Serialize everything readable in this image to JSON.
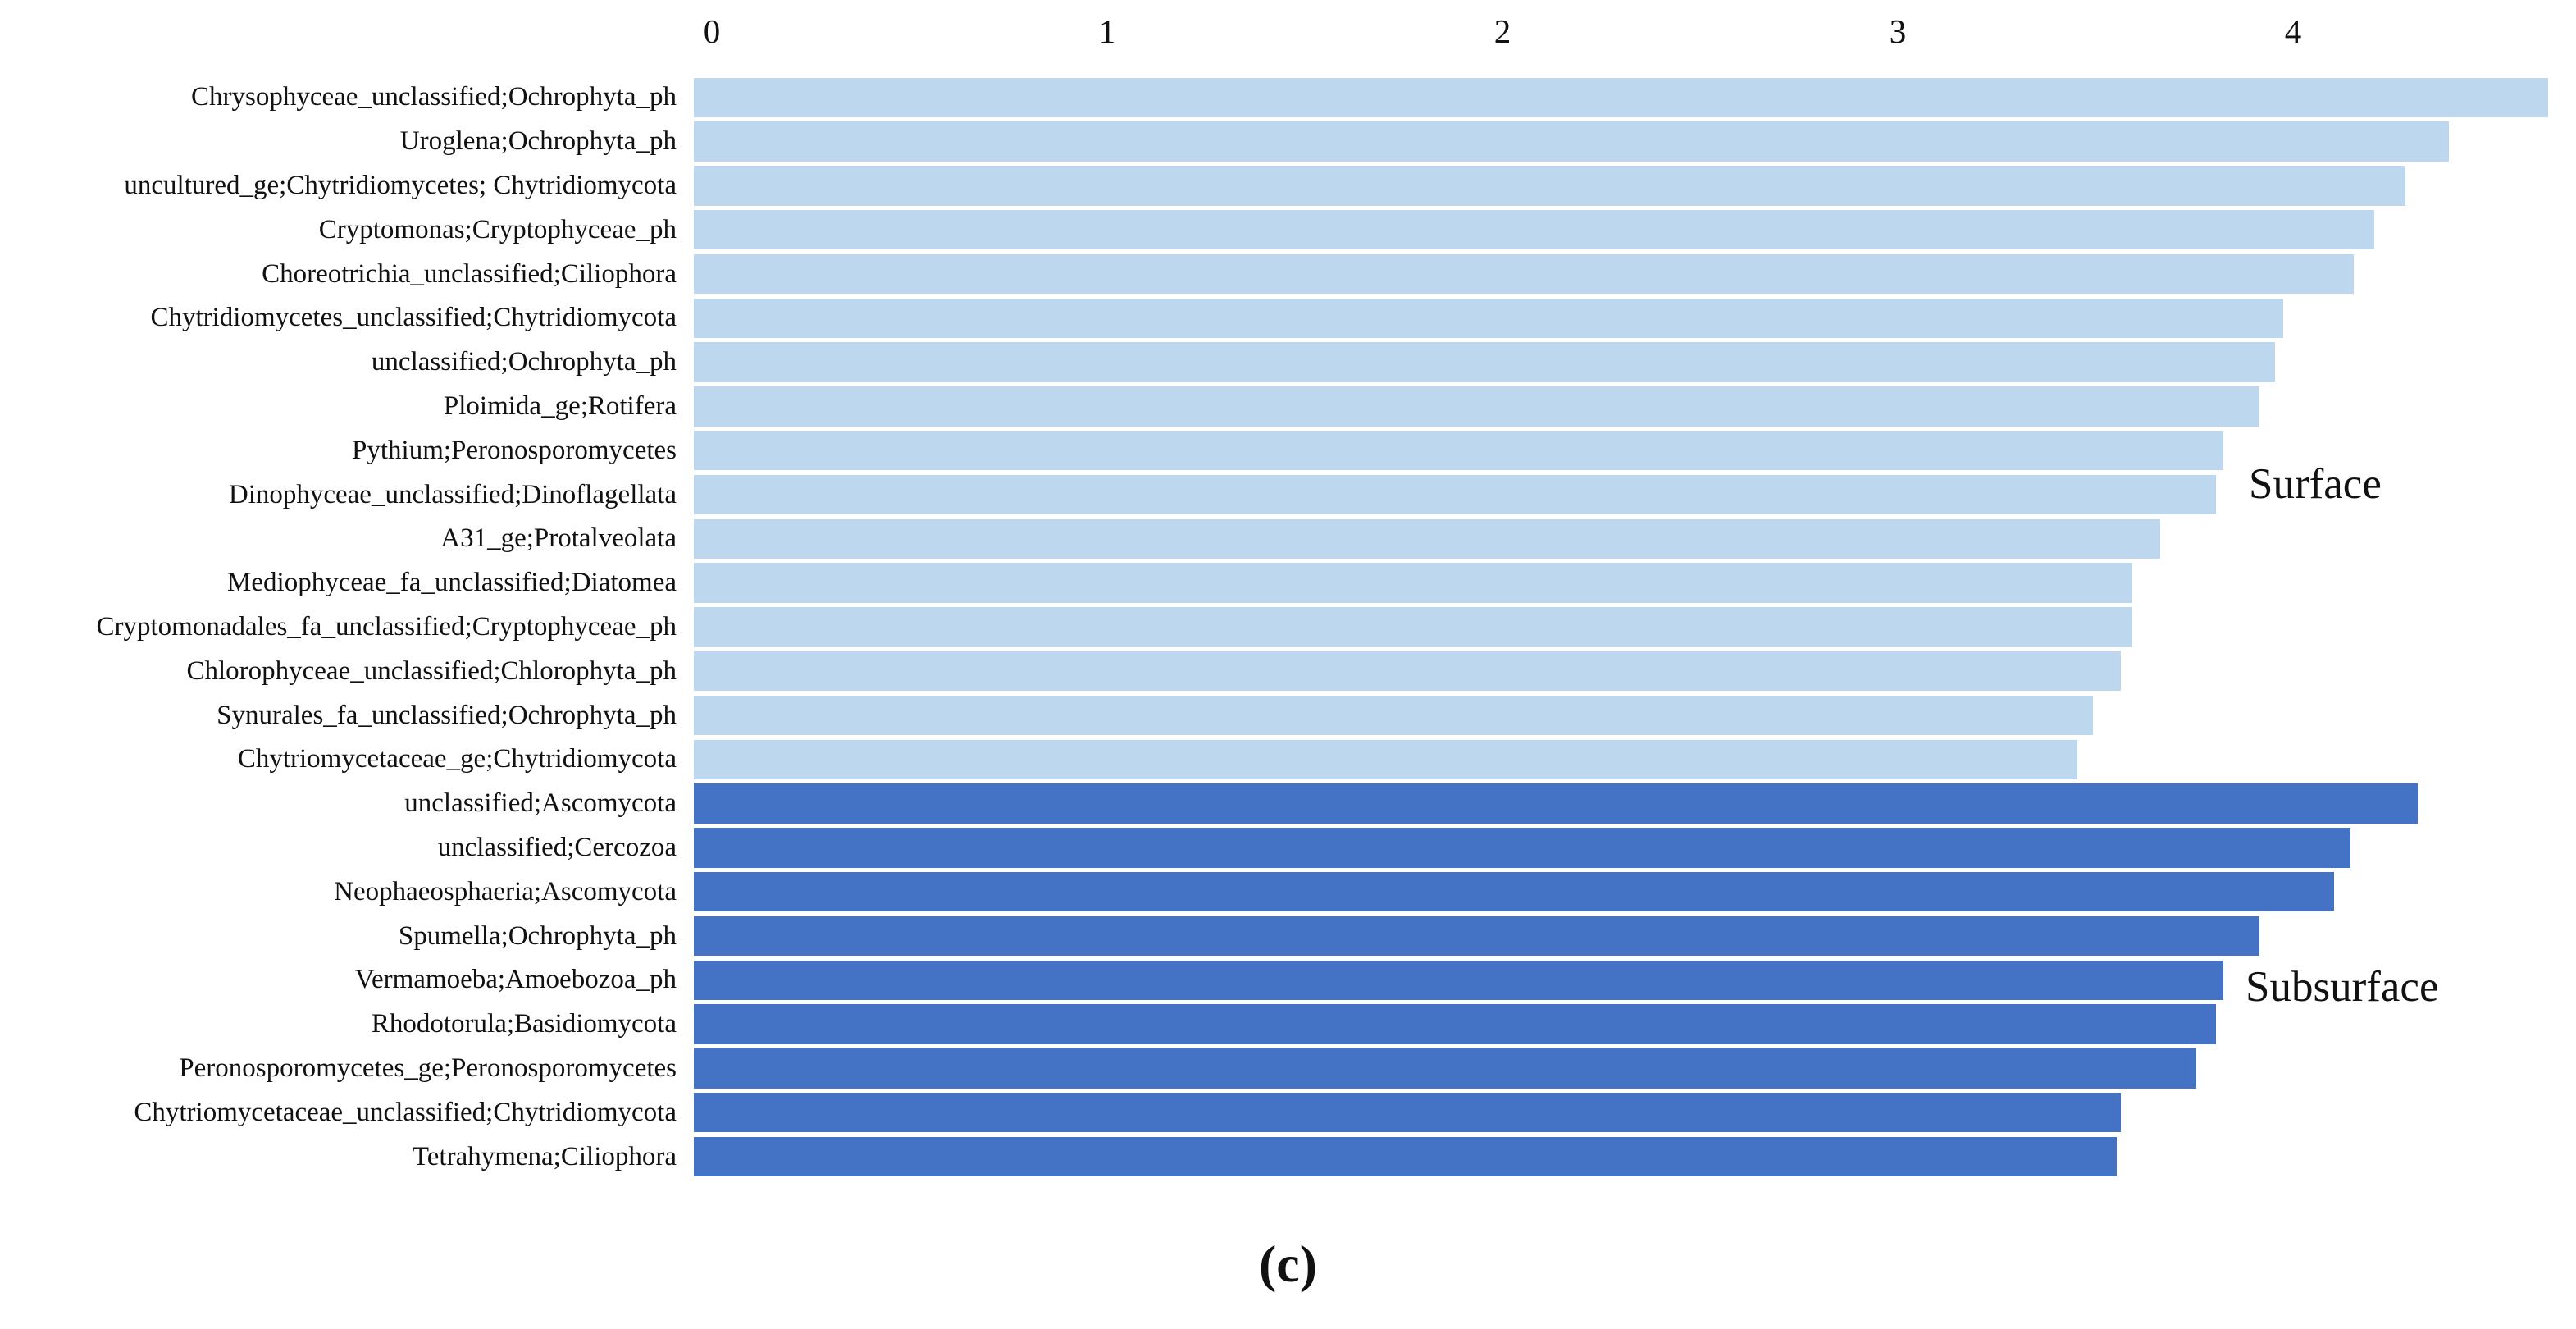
{
  "figure": {
    "caption": "(c)",
    "background": "#ffffff"
  },
  "chart_data": {
    "type": "bar",
    "orientation": "horizontal",
    "title": "",
    "xlabel": "",
    "ylabel": "",
    "xlim": [
      0,
      4.72
    ],
    "x_ticks": [
      "0",
      "1",
      "2",
      "3",
      "4"
    ],
    "grid": false,
    "axis_line": false,
    "groups": [
      {
        "name": "Surface",
        "color": "#BDD7EE"
      },
      {
        "name": "Subsurface",
        "color": "#4472C4"
      }
    ],
    "rows": [
      {
        "label": "Chrysophyceae_unclassified;Ochrophyta_ph",
        "group": "Surface",
        "value": 4.69
      },
      {
        "label": "Uroglena;Ochrophyta_ph",
        "group": "Surface",
        "value": 4.44
      },
      {
        "label": "uncultured_ge;Chytridiomycetes; Chytridiomycota",
        "group": "Surface",
        "value": 4.33
      },
      {
        "label": "Cryptomonas;Cryptophyceae_ph",
        "group": "Surface",
        "value": 4.25
      },
      {
        "label": "Choreotrichia_unclassified;Ciliophora",
        "group": "Surface",
        "value": 4.2
      },
      {
        "label": "Chytridiomycetes_unclassified;Chytridiomycota",
        "group": "Surface",
        "value": 4.02
      },
      {
        "label": "unclassified;Ochrophyta_ph",
        "group": "Surface",
        "value": 4.0
      },
      {
        "label": "Ploimida_ge;Rotifera",
        "group": "Surface",
        "value": 3.96
      },
      {
        "label": "Pythium;Peronosporomycetes",
        "group": "Surface",
        "value": 3.87
      },
      {
        "label": "Dinophyceae_unclassified;Dinoflagellata",
        "group": "Surface",
        "value": 3.85
      },
      {
        "label": "A31_ge;Protalveolata",
        "group": "Surface",
        "value": 3.71
      },
      {
        "label": "Mediophyceae_fa_unclassified;Diatomea",
        "group": "Surface",
        "value": 3.64
      },
      {
        "label": "Cryptomonadales_fa_unclassified;Cryptophyceae_ph",
        "group": "Surface",
        "value": 3.64
      },
      {
        "label": "Chlorophyceae_unclassified;Chlorophyta_ph",
        "group": "Surface",
        "value": 3.61
      },
      {
        "label": "Synurales_fa_unclassified;Ochrophyta_ph",
        "group": "Surface",
        "value": 3.54
      },
      {
        "label": "Chytriomycetaceae_ge;Chytridiomycota",
        "group": "Surface",
        "value": 3.5
      },
      {
        "label": "unclassified;Ascomycota",
        "group": "Subsurface",
        "value": 4.36
      },
      {
        "label": "unclassified;Cercozoa",
        "group": "Subsurface",
        "value": 4.19
      },
      {
        "label": "Neophaeosphaeria;Ascomycota",
        "group": "Subsurface",
        "value": 4.15
      },
      {
        "label": "Spumella;Ochrophyta_ph",
        "group": "Subsurface",
        "value": 3.96
      },
      {
        "label": "Vermamoeba;Amoebozoa_ph",
        "group": "Subsurface",
        "value": 3.87
      },
      {
        "label": "Rhodotorula;Basidiomycota",
        "group": "Subsurface",
        "value": 3.85
      },
      {
        "label": "Peronosporomycetes_ge;Peronosporomycetes",
        "group": "Subsurface",
        "value": 3.8
      },
      {
        "label": "Chytriomycetaceae_unclassified;Chytridiomycota",
        "group": "Subsurface",
        "value": 3.61
      },
      {
        "label": "Tetrahymena;Ciliophora",
        "group": "Subsurface",
        "value": 3.6
      }
    ]
  }
}
